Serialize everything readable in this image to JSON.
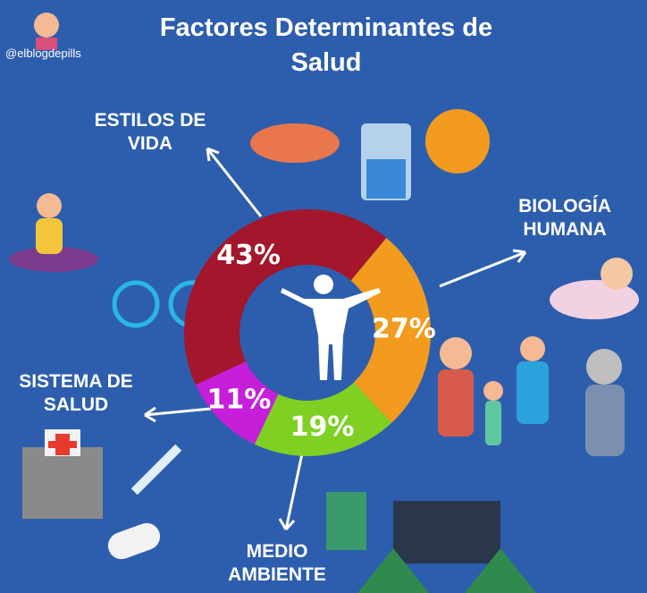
{
  "handle": "@elblogdepills",
  "chart_data": {
    "type": "donut",
    "title": "Factores Determinantes de Salud",
    "categories": [
      "ESTILOS DE VIDA",
      "BIOLOGÍA HUMANA",
      "MEDIO AMBIENTE",
      "SISTEMA DE SALUD"
    ],
    "values": [
      43,
      27,
      19,
      11
    ],
    "value_labels": [
      "43%",
      "27%",
      "19%",
      "11%"
    ],
    "colors": [
      "#a3162b",
      "#f29b1f",
      "#7fd023",
      "#c51fd9"
    ]
  }
}
